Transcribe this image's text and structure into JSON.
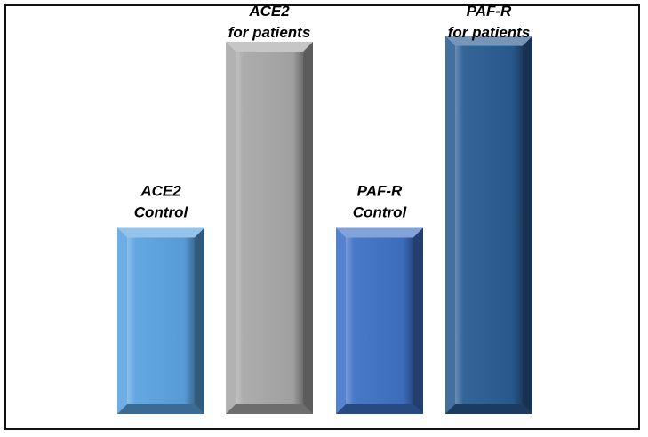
{
  "chart_data": {
    "type": "bar",
    "categories": [
      "ACE2 Control",
      "ACE2 for patients",
      "PAF-R Control",
      "PAF-R for patients"
    ],
    "labels": [
      [
        "ACE2",
        "Control"
      ],
      [
        "ACE2",
        "for patients"
      ],
      [
        "PAF-R",
        "Control"
      ],
      [
        "PAF-R",
        "for patients"
      ]
    ],
    "values": [
      1.0,
      2.0,
      1.0,
      2.03
    ],
    "colors": [
      "#5ba3e0",
      "#a8a8a8",
      "#3f72c6",
      "#2a5d93"
    ],
    "ylim": [
      0,
      2.1
    ],
    "axes_visible": false,
    "grid": false,
    "legend": "none"
  }
}
